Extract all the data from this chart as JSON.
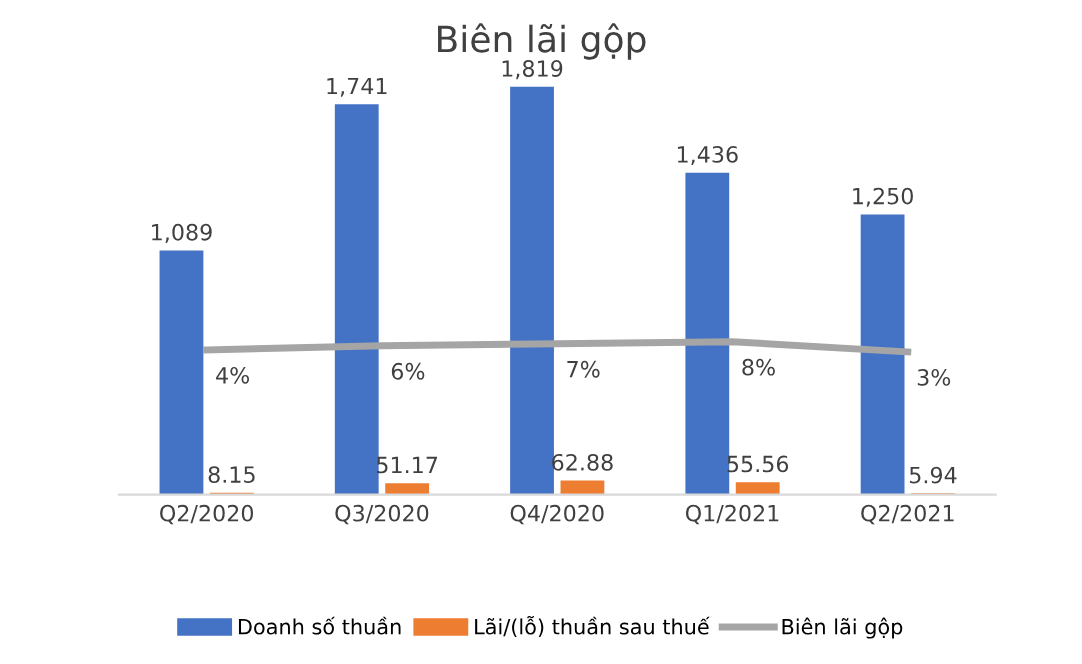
{
  "chart_data": {
    "type": "bar",
    "title": "Biên lãi gộp",
    "categories": [
      "Q2/2020",
      "Q3/2020",
      "Q4/2020",
      "Q1/2021",
      "Q2/2021"
    ],
    "series": [
      {
        "name": "Doanh số thuần",
        "color": "#4472c4",
        "values": [
          1089,
          1741,
          1819,
          1436,
          1250
        ],
        "value_labels": [
          "1,089",
          "1,741",
          "1,819",
          "1,436",
          "1,250"
        ]
      },
      {
        "name": "Lãi/(lỗ) thuần sau thuế",
        "color": "#ed7d31",
        "values": [
          8.15,
          51.17,
          62.88,
          55.56,
          5.94
        ],
        "value_labels": [
          "8.15",
          "51.17",
          "62.88",
          "55.56",
          "5.94"
        ]
      },
      {
        "name": "Biên lãi gộp",
        "color": "#a5a5a5",
        "type": "line",
        "axis": "y2",
        "values": [
          4,
          6,
          7,
          8,
          3
        ],
        "value_labels": [
          "4%",
          "6%",
          "7%",
          "8%",
          "3%"
        ]
      }
    ],
    "tick_labels": "x",
    "grid": false,
    "legend": "bottom",
    "marker": "none"
  }
}
